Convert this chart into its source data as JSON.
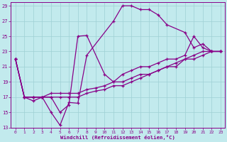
{
  "xlabel": "Windchill (Refroidissement éolien,°C)",
  "bg_color": "#c2eaed",
  "grid_color": "#9ed0d4",
  "line_color": "#880088",
  "xlim_min": -0.5,
  "xlim_max": 23.5,
  "ylim_min": 13,
  "ylim_max": 29.5,
  "yticks": [
    13,
    15,
    17,
    19,
    21,
    23,
    25,
    27,
    29
  ],
  "xticks": [
    0,
    1,
    2,
    3,
    4,
    5,
    6,
    7,
    8,
    9,
    10,
    11,
    12,
    13,
    14,
    15,
    16,
    17,
    18,
    19,
    20,
    21,
    22,
    23
  ],
  "s1_x": [
    0,
    1,
    2,
    3,
    4,
    5,
    6,
    7,
    8,
    11,
    12,
    13,
    14,
    15,
    16,
    17,
    19,
    20,
    21,
    22,
    23
  ],
  "s1_y": [
    22,
    17,
    16.5,
    17,
    15,
    13.3,
    16.3,
    16.2,
    22.5,
    27,
    29,
    29,
    28.5,
    28.5,
    27.8,
    26.5,
    25.5,
    23.5,
    24,
    23,
    23
  ],
  "s2_x": [
    0,
    1,
    2,
    3,
    4,
    5,
    6,
    7,
    8,
    10,
    11,
    12,
    13,
    14,
    15,
    16,
    17,
    18,
    19,
    20,
    21,
    22,
    23
  ],
  "s2_y": [
    22,
    17,
    17,
    17,
    17,
    15,
    16,
    25,
    25.1,
    20,
    19,
    20,
    20.5,
    21,
    21,
    21.5,
    22,
    22,
    22.5,
    25,
    23.5,
    23,
    23
  ],
  "s3_x": [
    0,
    1,
    2,
    3,
    4,
    5,
    6,
    7,
    8,
    9,
    10,
    11,
    12,
    13,
    14,
    15,
    16,
    17,
    18,
    19,
    20,
    21,
    22,
    23
  ],
  "s3_y": [
    22,
    17,
    17,
    17,
    17.5,
    17.5,
    17.5,
    17.5,
    18,
    18.2,
    18.5,
    19,
    19,
    19.5,
    20,
    20,
    20.5,
    21,
    21,
    22,
    22,
    22.5,
    23,
    23
  ],
  "s4_x": [
    0,
    1,
    2,
    3,
    4,
    5,
    6,
    7,
    8,
    9,
    10,
    11,
    12,
    13,
    14,
    15,
    16,
    17,
    18,
    19,
    20,
    21,
    22,
    23
  ],
  "s4_y": [
    22,
    17,
    17,
    17,
    17,
    17,
    17,
    17,
    17.5,
    17.8,
    18,
    18.5,
    18.5,
    19,
    19.5,
    20,
    20.5,
    21,
    21.5,
    22,
    22.5,
    23,
    23,
    23
  ]
}
